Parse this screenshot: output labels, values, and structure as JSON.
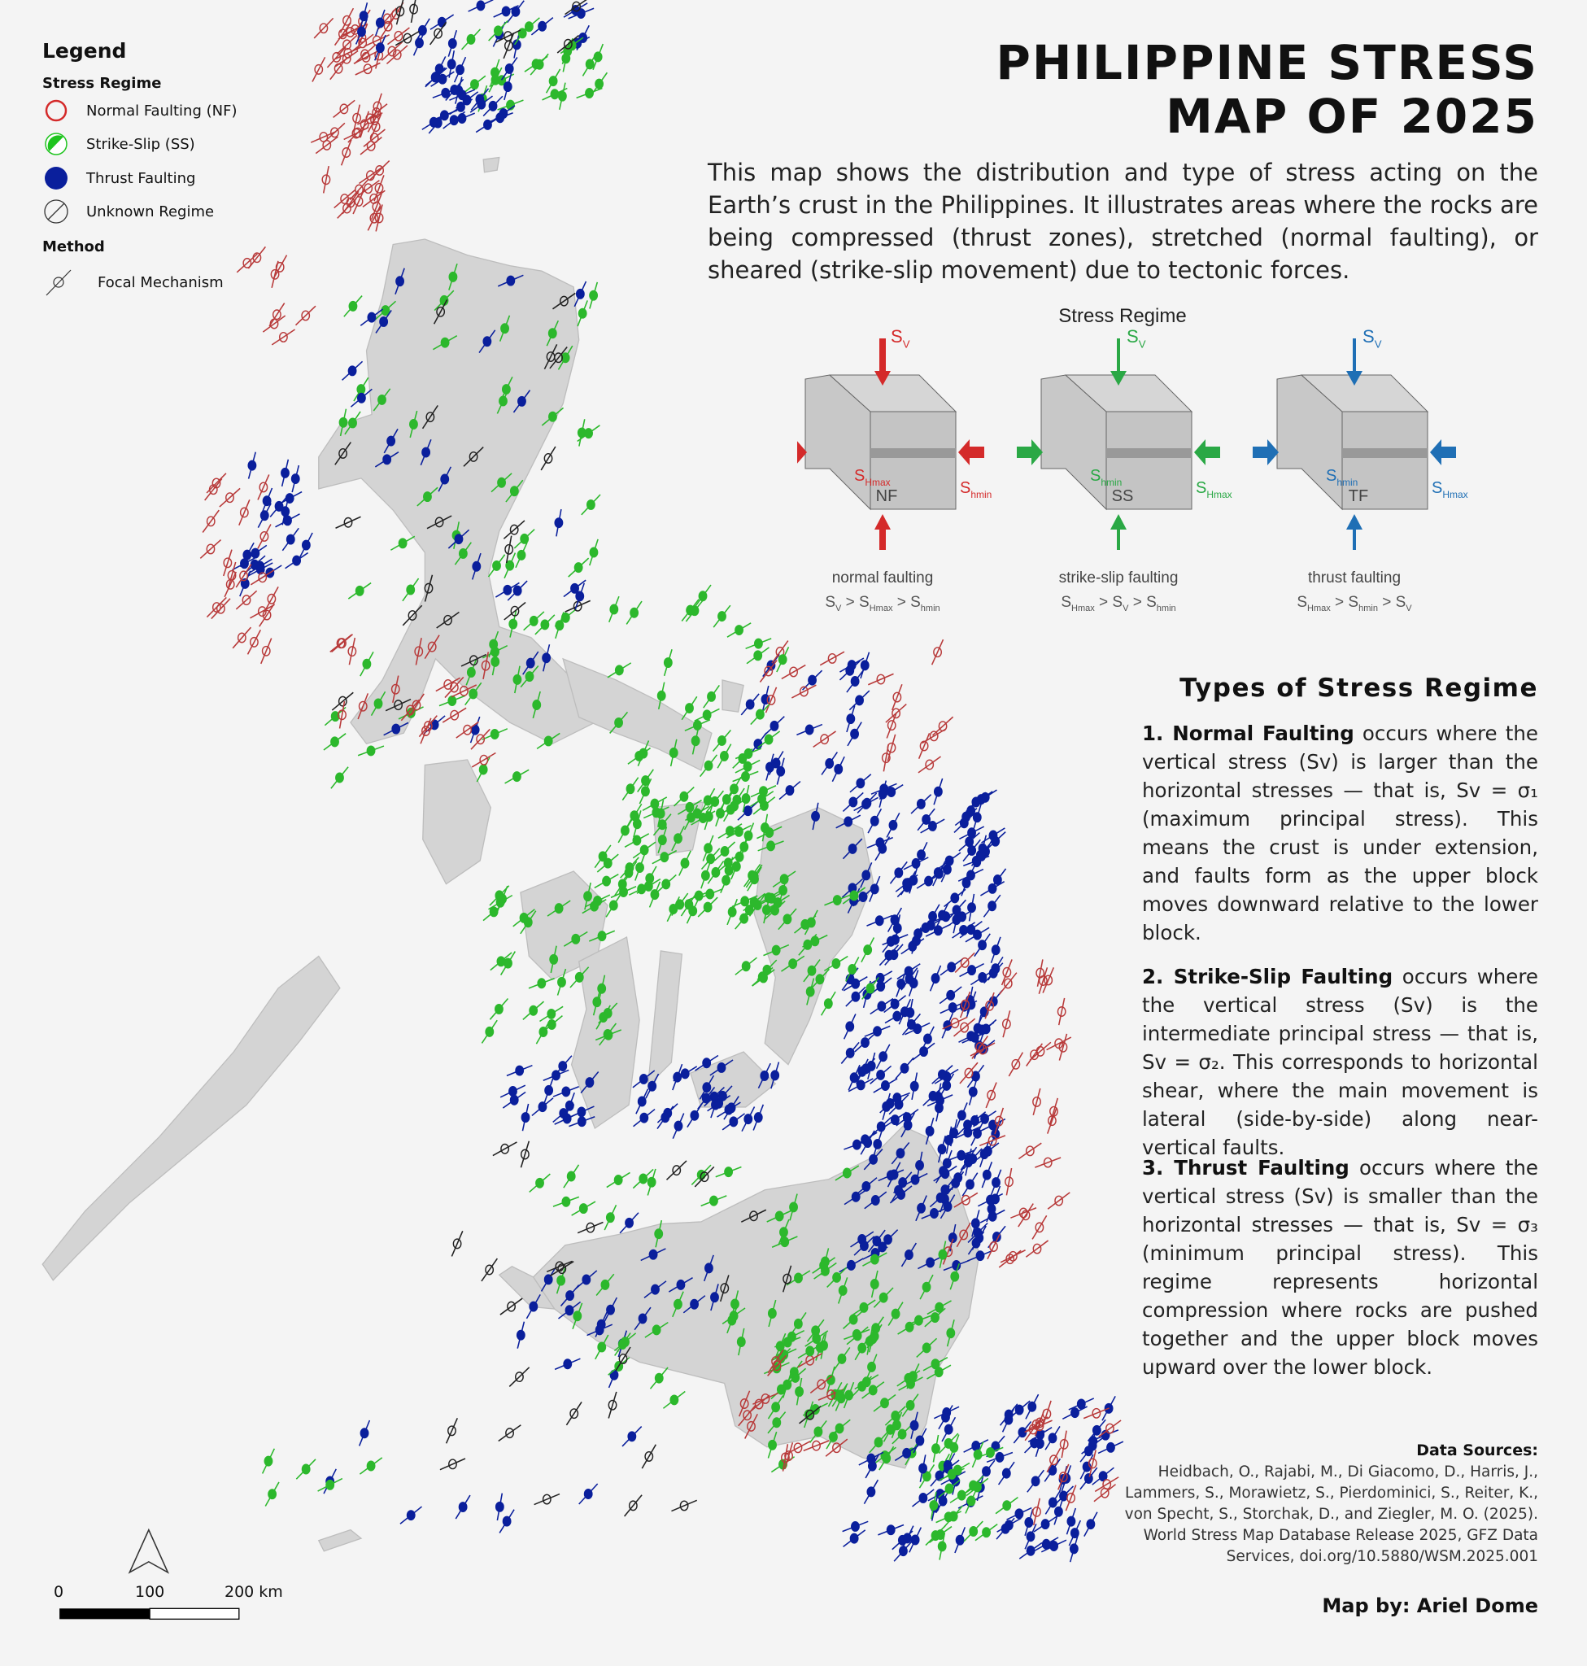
{
  "title": {
    "line1": "PHILIPPINE STRESS",
    "line2": "MAP OF 2025"
  },
  "intro": "This map shows the distribution and type of stress acting on the Earth’s crust in the Philippines. It illustrates areas where the rocks are being compressed (thrust zones), stretched (normal faulting), or sheared (strike-slip movement) due to tectonic forces.",
  "legend": {
    "title": "Legend",
    "regime_heading": "Stress Regime",
    "items": [
      {
        "label": "Normal Faulting (NF)",
        "color": "#d42a2a",
        "icon": "open-circle-icon"
      },
      {
        "label": "Strike-Slip (SS)",
        "color": "#1ec41e",
        "icon": "half-filled-circle-icon"
      },
      {
        "label": "Thrust Faulting",
        "color": "#0a1f9c",
        "icon": "filled-circle-icon"
      },
      {
        "label": "Unknown Regime",
        "color": "#333333",
        "icon": "slashed-circle-icon"
      }
    ],
    "method_heading": "Method",
    "method_item": {
      "label": "Focal Mechanism",
      "icon": "focal-mechanism-icon"
    }
  },
  "diagram": {
    "title": "Stress Regime",
    "panels": [
      {
        "code": "NF",
        "name": "normal faulting",
        "color": "#d42a2a",
        "sv": "V",
        "left": "Hmax",
        "right": "hmin",
        "formula": [
          [
            "S",
            "V"
          ],
          [
            "S",
            "Hmax"
          ],
          [
            "S",
            "hmin"
          ]
        ]
      },
      {
        "code": "SS",
        "name": "strike-slip faulting",
        "color": "#2aa845",
        "sv": "V",
        "left": "hmin",
        "right": "Hmax",
        "formula": [
          [
            "S",
            "Hmax"
          ],
          [
            "S",
            "V"
          ],
          [
            "S",
            "hmin"
          ]
        ]
      },
      {
        "code": "TF",
        "name": "thrust faulting",
        "color": "#1f6fb5",
        "sv": "V",
        "left": "hmin",
        "right": "Hmax",
        "formula": [
          [
            "S",
            "Hmax"
          ],
          [
            "S",
            "hmin"
          ],
          [
            "S",
            "V"
          ]
        ]
      }
    ],
    "letter": "S",
    "gt": ">"
  },
  "types": {
    "title": "Types of Stress Regime",
    "items": [
      {
        "lead": "1. Normal Faulting",
        "text": " occurs where the vertical stress (Sv) is larger than the horizontal stresses — that is, Sv = σ₁ (maximum principal stress). This means the crust is under extension, and faults form as the upper block moves downward relative to the lower block."
      },
      {
        "lead": "2. Strike-Slip Faulting",
        "text": " occurs where the vertical stress (Sv) is the intermediate principal stress — that is, Sv = σ₂. This corresponds to horizontal shear, where the main movement is lateral (side-by-side) along near-vertical faults."
      },
      {
        "lead": "3. Thrust Faulting",
        "text": " occurs where the vertical stress (Sv) is smaller than the horizontal stresses — that is, Sv = σ₃ (minimum principal stress). This regime represents horizontal compression where rocks are pushed together and the upper block moves upward over the lower block."
      }
    ]
  },
  "sources": {
    "heading": "Data Sources:",
    "text": "Heidbach, O., Rajabi, M., Di Giacomo, D., Harris, J., Lammers, S., Morawietz, S., Pierdominici, S., Reiter, K., von Specht, S., Storchak, D., and Ziegler, M. O. (2025). World Stress Map Database Release 2025, GFZ Data Services, doi.org/10.5880/WSM.2025.001"
  },
  "credit": "Map by: Ariel Dome",
  "scale": {
    "ticks": [
      "0",
      "100",
      "200 km"
    ]
  },
  "colors": {
    "land": "#d4d4d4",
    "background": "#f4f4f4",
    "nf": "#b83a3a",
    "ss": "#2cb82c",
    "tf": "#0a1f9c",
    "unknown": "#222222"
  }
}
